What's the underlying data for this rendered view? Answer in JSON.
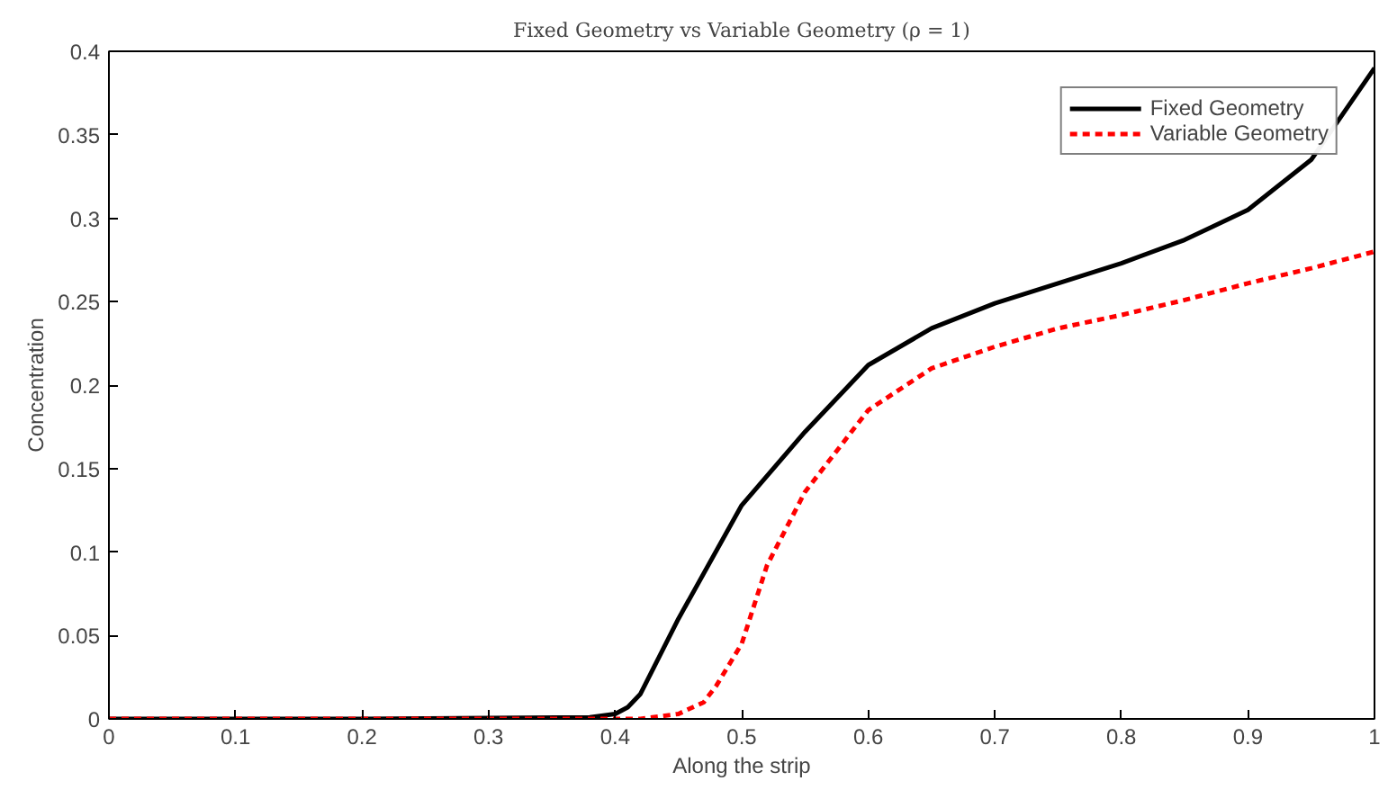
{
  "chart_data": {
    "type": "line",
    "title": "Fixed Geometry vs Variable Geometry (ρ = 1)",
    "xlabel": "Along the strip",
    "ylabel": "Concentration",
    "xlim": [
      0,
      1
    ],
    "ylim": [
      0,
      0.4
    ],
    "xticks": [
      0,
      0.1,
      0.2,
      0.3,
      0.4,
      0.5,
      0.6,
      0.7,
      0.8,
      0.9,
      1
    ],
    "yticks": [
      0,
      0.05,
      0.1,
      0.15,
      0.2,
      0.25,
      0.3,
      0.35,
      0.4
    ],
    "grid": false,
    "legend": "top right",
    "series": [
      {
        "name": "Fixed Geometry",
        "color": "#000000",
        "line_style": "solid",
        "x": [
          0,
          0.2,
          0.38,
          0.4,
          0.41,
          0.42,
          0.45,
          0.5,
          0.55,
          0.6,
          0.65,
          0.7,
          0.75,
          0.8,
          0.85,
          0.9,
          0.95,
          1.0
        ],
        "values": [
          0,
          0,
          0.001,
          0.003,
          0.007,
          0.015,
          0.06,
          0.128,
          0.172,
          0.212,
          0.234,
          0.249,
          0.261,
          0.273,
          0.287,
          0.305,
          0.335,
          0.39
        ]
      },
      {
        "name": "Variable Geometry",
        "color": "#ff0000",
        "line_style": "dashed",
        "x": [
          0,
          0.2,
          0.42,
          0.45,
          0.47,
          0.48,
          0.5,
          0.52,
          0.55,
          0.6,
          0.65,
          0.7,
          0.75,
          0.8,
          0.85,
          0.9,
          0.95,
          1.0
        ],
        "values": [
          0,
          0,
          0,
          0.003,
          0.01,
          0.02,
          0.045,
          0.092,
          0.136,
          0.185,
          0.21,
          0.223,
          0.234,
          0.242,
          0.251,
          0.261,
          0.27,
          0.28
        ]
      }
    ]
  }
}
